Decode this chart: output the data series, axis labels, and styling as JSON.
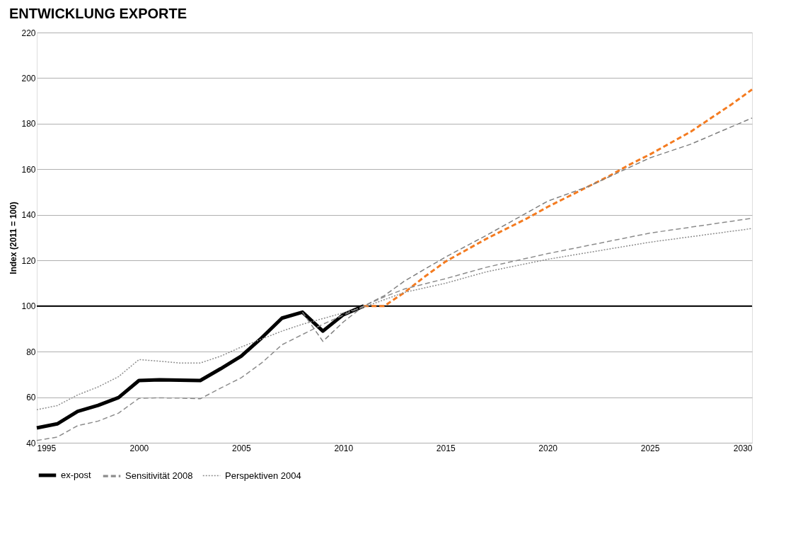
{
  "chart_data": {
    "type": "line",
    "title": "ENTWICKLUNG EXPORTE",
    "ylabel": "Index (2011 = 100)",
    "xlim": [
      1995,
      2030
    ],
    "xticks": [
      1995,
      2000,
      2005,
      2010,
      2015,
      2020,
      2025,
      2030
    ],
    "ylim": [
      40,
      220
    ],
    "yticks": [
      40,
      60,
      80,
      100,
      120,
      140,
      160,
      180,
      200,
      220
    ],
    "grid": "y",
    "legend": "bottom",
    "marker": "none",
    "ref_lines": [
      {
        "axis": "y",
        "value": 100,
        "color": "#000000",
        "line_style": "solid"
      }
    ],
    "series": [
      {
        "name": "ex-post",
        "color": "#000000",
        "line_style": "solid",
        "x": [
          1995,
          1996,
          1997,
          1998,
          1999,
          2000,
          2001,
          2002,
          2003,
          2004,
          2005,
          2006,
          2007,
          2008,
          2009,
          2010,
          2011
        ],
        "values": [
          46.5,
          48.3,
          53.8,
          56.4,
          59.8,
          67.3,
          67.6,
          67.5,
          67.3,
          72.5,
          78,
          86,
          94.7,
          97.3,
          89,
          96.2,
          100
        ]
      },
      {
        "color": "#f47b20",
        "line_style": "dashed",
        "x": [
          2011,
          2012,
          2013,
          2014,
          2015,
          2016,
          2017,
          2018,
          2019,
          2020,
          2021,
          2022,
          2023,
          2024,
          2025,
          2026,
          2027,
          2028,
          2029,
          2030
        ],
        "values": [
          100,
          100,
          106,
          113,
          119.5,
          124.5,
          129.5,
          134,
          138.5,
          143.5,
          148,
          152.5,
          157,
          162,
          166.5,
          171.5,
          176.5,
          182.5,
          188.5,
          195
        ]
      },
      {
        "color": "#7f7f7f",
        "line_style": "dashed",
        "x": [
          2008,
          2009,
          2010,
          2011,
          2012,
          2013,
          2015,
          2017,
          2020,
          2022,
          2025,
          2027,
          2030
        ],
        "values": [
          97.3,
          84.5,
          93,
          100,
          104.5,
          111,
          121.5,
          131,
          146,
          152.5,
          165,
          171,
          182.5
        ]
      },
      {
        "name": "Sensitivität 2008",
        "color": "#8c8c8c",
        "line_style": "dashed",
        "x": [
          1995,
          1996,
          1997,
          1998,
          1999,
          2000,
          2001,
          2002,
          2003,
          2004,
          2005,
          2006,
          2007,
          2008,
          2009,
          2010,
          2011,
          2012,
          2013,
          2015,
          2017,
          2020,
          2025,
          2030
        ],
        "values": [
          41,
          42.5,
          47.5,
          49.5,
          53,
          59.5,
          59.7,
          59.6,
          59.3,
          64,
          68.5,
          75,
          83,
          87.5,
          92,
          96,
          100,
          104,
          107.5,
          112,
          117,
          123,
          132,
          138.5
        ]
      },
      {
        "name": "Perspektiven 2004",
        "color": "#8c8c8c",
        "line_style": "dotted",
        "x": [
          1995,
          1996,
          1997,
          1998,
          1999,
          2000,
          2001,
          2002,
          2003,
          2004,
          2005,
          2006,
          2007,
          2008,
          2009,
          2010,
          2011,
          2013,
          2015,
          2017,
          2020,
          2025,
          2030
        ],
        "values": [
          54.5,
          56.3,
          61,
          64.5,
          69,
          76.5,
          75.8,
          75,
          75,
          78,
          82,
          85.5,
          89,
          92,
          94.5,
          97,
          99.5,
          106,
          110,
          115,
          120.5,
          128,
          134
        ]
      }
    ]
  }
}
